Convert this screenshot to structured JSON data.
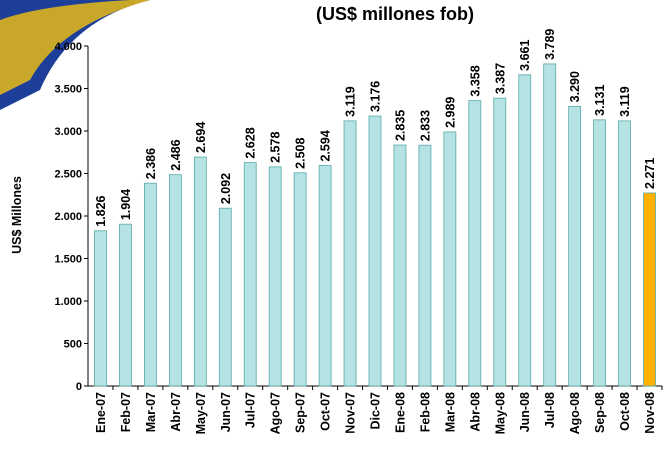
{
  "chart_data": {
    "type": "bar",
    "title": "(US$ millones fob)",
    "y_label": "US$ Millones",
    "categories": [
      "Ene-07",
      "Feb-07",
      "Mar-07",
      "Abr-07",
      "May-07",
      "Jun-07",
      "Jul-07",
      "Ago-07",
      "Sep-07",
      "Oct-07",
      "Nov-07",
      "Dic-07",
      "Ene-08",
      "Feb-08",
      "Mar-08",
      "Abr-08",
      "May-08",
      "Jun-08",
      "Jul-08",
      "Ago-08",
      "Sep-08",
      "Oct-08",
      "Nov-08"
    ],
    "values": [
      1826,
      1904,
      2386,
      2486,
      2694,
      2092,
      2628,
      2578,
      2508,
      2594,
      3119,
      3176,
      2835,
      2833,
      2989,
      3358,
      3387,
      3661,
      3789,
      3290,
      3131,
      3119,
      2271
    ],
    "value_labels": [
      "1.826",
      "1.904",
      "2.386",
      "2.486",
      "2.694",
      "2.092",
      "2.628",
      "2.578",
      "2.508",
      "2.594",
      "3.119",
      "3.176",
      "2.835",
      "2.833",
      "2.989",
      "3.358",
      "3.387",
      "3.661",
      "3.789",
      "3.290",
      "3.131",
      "3.119",
      "2.271"
    ],
    "colors": [
      "#b5e3e3",
      "#b5e3e3",
      "#b5e3e3",
      "#b5e3e3",
      "#b5e3e3",
      "#b5e3e3",
      "#b5e3e3",
      "#b5e3e3",
      "#b5e3e3",
      "#b5e3e3",
      "#b5e3e3",
      "#b5e3e3",
      "#b5e3e3",
      "#b5e3e3",
      "#b5e3e3",
      "#b5e3e3",
      "#b5e3e3",
      "#b5e3e3",
      "#b5e3e3",
      "#b5e3e3",
      "#b5e3e3",
      "#b5e3e3",
      "#ffb000"
    ],
    "ylim": [
      0,
      4000
    ],
    "yticks": [
      0,
      500,
      {
        "value": 1000,
        "label": "1.000"
      },
      {
        "value": 1500,
        "label": "1.500"
      },
      {
        "value": 2000,
        "label": "2.000"
      },
      {
        "value": 2500,
        "label": "2.500"
      },
      {
        "value": 3000,
        "label": "3.000"
      },
      {
        "value": 3500,
        "label": "3.500"
      },
      {
        "value": 4000,
        "label": "4.000"
      }
    ],
    "grid": false
  }
}
